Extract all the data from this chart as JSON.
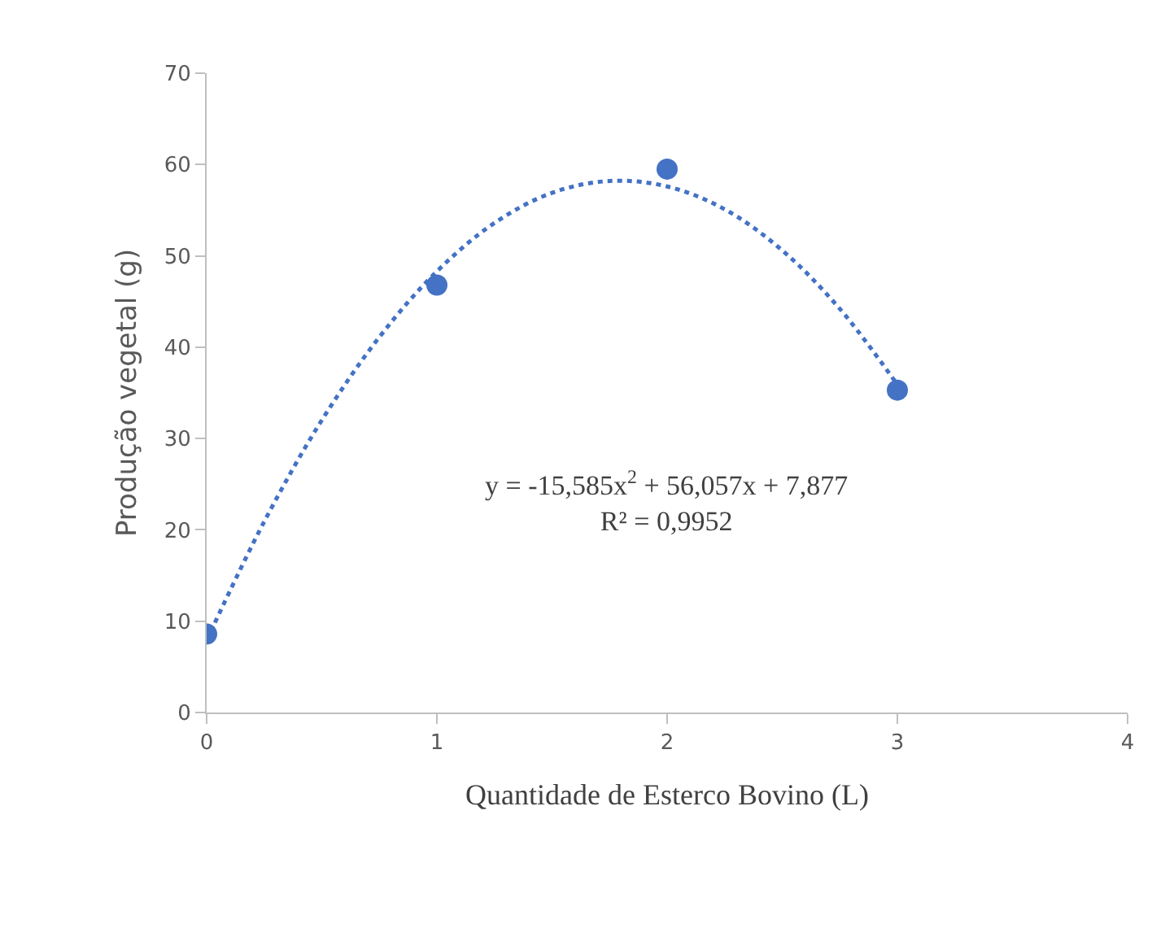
{
  "chart_data": {
    "type": "scatter",
    "xlabel": "Quantidade de Esterco Bovino (L)",
    "ylabel": "Produção vegetal (g)",
    "xlim": [
      0,
      4
    ],
    "xticks": [
      0,
      1,
      2,
      3,
      4
    ],
    "ylim": [
      0,
      70
    ],
    "yticks": [
      0,
      10,
      20,
      30,
      40,
      50,
      60,
      70
    ],
    "marker": "circle",
    "series": [
      {
        "color": "#4472c4",
        "x": [
          0,
          1,
          2,
          3
        ],
        "values": [
          8.6,
          46.8,
          59.5,
          35.3
        ]
      },
      {
        "type": "line",
        "color": "#4472c4",
        "line_style": "dotted",
        "marker": "none",
        "x": [
          0,
          0.25,
          0.5,
          0.75,
          1,
          1.25,
          1.5,
          1.75,
          2,
          2.25,
          2.5,
          2.75,
          3
        ],
        "values": [
          7.9,
          20.9,
          32.0,
          41.1,
          48.3,
          53.6,
          56.9,
          58.2,
          57.6,
          55.1,
          50.6,
          44.2,
          35.9
        ]
      }
    ],
    "annotations": [
      "y = -15,585x$^{2}$ + 56,057x + 7,877\nR² = 0,9952"
    ]
  }
}
